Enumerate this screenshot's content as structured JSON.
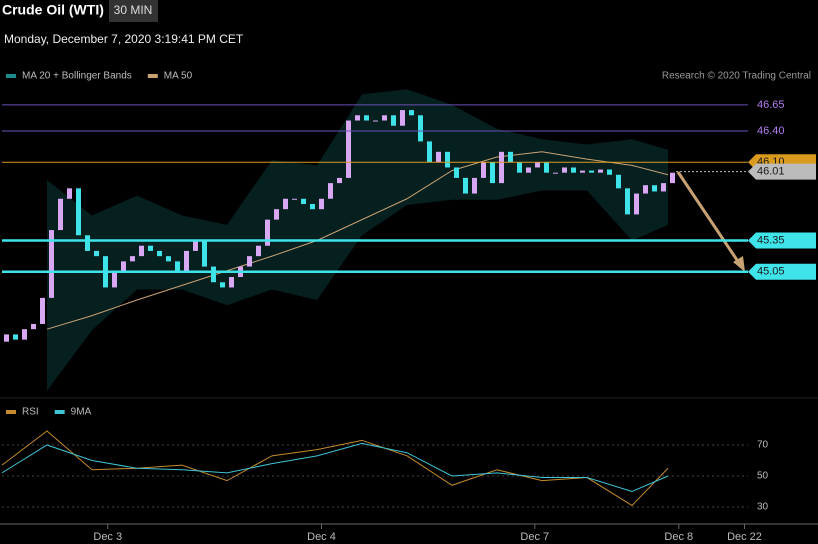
{
  "header": {
    "title": "Crude Oil (WTI)",
    "timeframe": "30 MIN",
    "timestamp": "Monday, December 7, 2020 3:19:41 PM CET",
    "credit": "Research © 2020 Trading Central"
  },
  "chart_data": [
    {
      "type": "candlestick",
      "up_color": "#d9a8f5",
      "down_color": "#3fe3ea",
      "xlim": [
        0,
        181
      ],
      "ylim": [
        43.85,
        47.08
      ],
      "xticks": [
        {
          "value": 23.5,
          "label": "Dec 3"
        },
        {
          "value": 71,
          "label": "Dec 4"
        },
        {
          "value": 118.4,
          "label": "Dec 7"
        },
        {
          "value": 150.4,
          "label": "Dec 8"
        },
        {
          "value": 165,
          "label": "Dec 22"
        }
      ],
      "candles": {
        "x": [
          1,
          3,
          5,
          7,
          9,
          11,
          13,
          15,
          17,
          19,
          21,
          23,
          25,
          27,
          29,
          31,
          33,
          35,
          37,
          39,
          41,
          43,
          45,
          47,
          49,
          51,
          53,
          55,
          57,
          59,
          61,
          63,
          65,
          67,
          69,
          71,
          73,
          75,
          77,
          79,
          81,
          83,
          85,
          87,
          89,
          91,
          93,
          95,
          97,
          99,
          101,
          103,
          105,
          107,
          109,
          111,
          113,
          115,
          117,
          119,
          121,
          123,
          125,
          127,
          129,
          131,
          133,
          135,
          137,
          139,
          141,
          143,
          145,
          147,
          149
        ],
        "open": [
          44.38,
          44.45,
          44.4,
          44.5,
          44.55,
          44.8,
          45.45,
          45.75,
          45.85,
          45.4,
          45.25,
          45.2,
          44.9,
          45.05,
          45.15,
          45.2,
          45.3,
          45.25,
          45.2,
          45.15,
          45.05,
          45.25,
          45.35,
          45.1,
          44.95,
          44.9,
          45.0,
          45.1,
          45.2,
          45.3,
          45.55,
          45.65,
          45.75,
          45.75,
          45.7,
          45.65,
          45.75,
          45.9,
          45.95,
          46.5,
          46.55,
          46.5,
          46.5,
          46.55,
          46.45,
          46.6,
          46.55,
          46.3,
          46.1,
          46.2,
          46.05,
          45.95,
          45.8,
          45.95,
          46.1,
          45.9,
          46.2,
          46.1,
          46.0,
          46.05,
          46.1,
          46.0,
          46.0,
          46.05,
          46.0,
          46.02,
          46.0,
          46.03,
          45.98,
          45.85,
          45.6,
          45.8,
          45.88,
          45.82,
          45.9
        ],
        "close": [
          44.45,
          44.4,
          44.5,
          44.55,
          44.8,
          45.45,
          45.75,
          45.85,
          45.4,
          45.25,
          45.2,
          44.9,
          45.05,
          45.15,
          45.2,
          45.3,
          45.25,
          45.2,
          45.15,
          45.05,
          45.25,
          45.35,
          45.1,
          44.95,
          44.9,
          45.0,
          45.1,
          45.2,
          45.3,
          45.55,
          45.65,
          45.75,
          45.75,
          45.7,
          45.65,
          45.75,
          45.9,
          45.95,
          46.5,
          46.55,
          46.5,
          46.5,
          46.55,
          46.45,
          46.6,
          46.55,
          46.3,
          46.1,
          46.2,
          46.05,
          45.95,
          45.8,
          45.95,
          46.1,
          45.9,
          46.2,
          46.1,
          46.0,
          46.05,
          46.1,
          46.0,
          46.0,
          46.05,
          46.0,
          46.02,
          46.0,
          46.03,
          45.98,
          45.85,
          45.6,
          45.8,
          45.88,
          45.82,
          45.9,
          46.0
        ]
      },
      "series": [
        {
          "name": "MA 20 + Bollinger Bands",
          "color": "#1d8c8c",
          "x": [
            10,
            20,
            30,
            40,
            50,
            60,
            70,
            80,
            90,
            100,
            110,
            120,
            130,
            140,
            148
          ],
          "upper": [
            45.93,
            45.59,
            45.78,
            45.59,
            45.5,
            46.12,
            46.07,
            46.75,
            46.8,
            46.65,
            46.42,
            46.32,
            46.27,
            46.32,
            46.22
          ],
          "lower": [
            43.91,
            44.49,
            44.88,
            44.88,
            44.73,
            44.88,
            44.78,
            45.4,
            45.69,
            45.74,
            45.74,
            45.83,
            45.83,
            45.35,
            45.5
          ]
        },
        {
          "name": "MA 50",
          "color": "#c9a273",
          "x": [
            10,
            20,
            30,
            40,
            50,
            60,
            70,
            80,
            90,
            100,
            110,
            120,
            130,
            140,
            148
          ],
          "values": [
            44.5,
            44.63,
            44.78,
            44.92,
            45.06,
            45.2,
            45.35,
            45.55,
            45.75,
            46.02,
            46.15,
            46.2,
            46.13,
            46.07,
            45.98
          ]
        }
      ],
      "levels": [
        {
          "value": 46.65,
          "label": "46.65",
          "color": "#6a4fb8",
          "label_color": "#b57df0",
          "box": false
        },
        {
          "value": 46.4,
          "label": "46.40",
          "color": "#6a4fb8",
          "label_color": "#b57df0",
          "box": false
        },
        {
          "value": 46.1,
          "label": "46.10",
          "color": "#d99a1e",
          "label_color": "#1a1a1a",
          "box": true
        },
        {
          "value": 46.01,
          "label": "46.01",
          "color": "#bbbbbb",
          "label_color": "#1a1a1a",
          "box": true
        },
        {
          "value": 45.35,
          "label": "45.35",
          "color": "#3fe3ea",
          "label_color": "#1a1a1a",
          "box": true
        },
        {
          "value": 45.05,
          "label": "45.05",
          "color": "#3fe3ea",
          "label_color": "#1a1a1a",
          "box": true
        }
      ]
    },
    {
      "type": "line",
      "xlim": [
        0,
        181
      ],
      "ylim": [
        21.6,
        95.8
      ],
      "yticks": [
        30,
        50,
        70
      ],
      "series": [
        {
          "name": "RSI",
          "color": "#c48a2c",
          "x": [
            0,
            10,
            20,
            30,
            40,
            50,
            60,
            70,
            80,
            90,
            100,
            110,
            120,
            130,
            140,
            148
          ],
          "values": [
            57,
            79,
            54,
            55,
            57,
            47,
            63,
            67,
            73,
            63,
            44,
            54,
            47,
            49,
            31,
            55
          ]
        },
        {
          "name": "9MA",
          "color": "#3fc4d6",
          "x": [
            0,
            10,
            20,
            30,
            40,
            50,
            60,
            70,
            80,
            90,
            100,
            110,
            120,
            130,
            140,
            148
          ],
          "values": [
            52,
            70,
            60,
            55,
            54,
            52,
            58,
            63,
            71,
            65,
            50,
            52,
            49,
            49,
            40,
            50
          ]
        }
      ]
    }
  ]
}
